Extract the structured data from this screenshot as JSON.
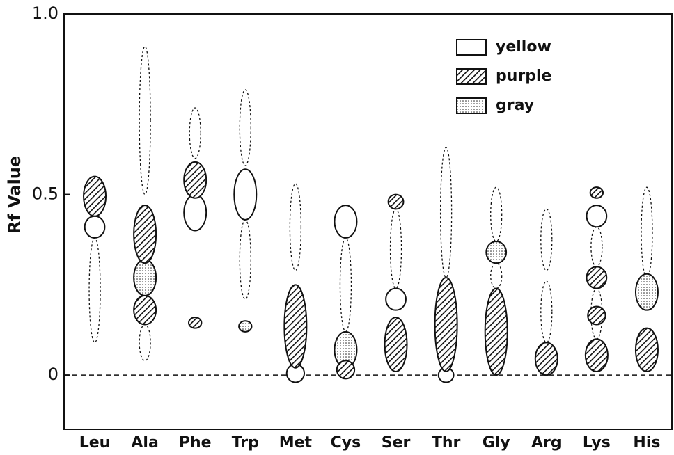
{
  "chart_data": {
    "type": "chromatogram",
    "y_label": "Rf Value",
    "categories": [
      "Leu",
      "Ala",
      "Phe",
      "Trp",
      "Met",
      "Cys",
      "Ser",
      "Thr",
      "Gly",
      "Arg",
      "Lys",
      "His"
    ],
    "ylim": [
      -0.15,
      1.0
    ],
    "yticks": [
      {
        "value": 1,
        "label": "1.0"
      },
      0.5,
      0
    ],
    "legend": [
      {
        "name": "yellow",
        "kind": "yellow"
      },
      {
        "name": "purple",
        "kind": "purple"
      },
      {
        "name": "gray",
        "kind": "gray"
      }
    ],
    "spots": [
      [
        {
          "kind": "yellow",
          "dashed": true,
          "range": [
            0.09,
            0.38
          ]
        },
        {
          "kind": "yellow",
          "range": [
            0.38,
            0.44
          ]
        },
        {
          "kind": "purple",
          "range": [
            0.44,
            0.55
          ]
        }
      ],
      [
        {
          "kind": "yellow",
          "dashed": true,
          "range": [
            0.04,
            0.14
          ]
        },
        {
          "kind": "yellow",
          "dashed": true,
          "range": [
            0.5,
            0.91
          ]
        },
        {
          "kind": "purple",
          "range": [
            0.14,
            0.22
          ]
        },
        {
          "kind": "gray",
          "range": [
            0.22,
            0.32
          ]
        },
        {
          "kind": "purple",
          "range": [
            0.31,
            0.47
          ]
        }
      ],
      [
        {
          "kind": "yellow",
          "dashed": true,
          "range": [
            0.6,
            0.74
          ]
        },
        {
          "kind": "yellow",
          "range": [
            0.4,
            0.5
          ]
        },
        {
          "kind": "purple",
          "range": [
            0.49,
            0.59
          ]
        },
        {
          "kind": "purple",
          "range": [
            0.13,
            0.16
          ]
        }
      ],
      [
        {
          "kind": "yellow",
          "dashed": true,
          "range": [
            0.58,
            0.79
          ]
        },
        {
          "kind": "yellow",
          "dashed": true,
          "range": [
            0.21,
            0.43
          ]
        },
        {
          "kind": "yellow",
          "range": [
            0.43,
            0.57
          ]
        },
        {
          "kind": "gray",
          "range": [
            0.12,
            0.15
          ]
        }
      ],
      [
        {
          "kind": "yellow",
          "dashed": true,
          "range": [
            0.29,
            0.53
          ]
        },
        {
          "kind": "yellow",
          "range": [
            -0.02,
            0.03
          ]
        },
        {
          "kind": "purple",
          "range": [
            0.02,
            0.25
          ]
        }
      ],
      [
        {
          "kind": "yellow",
          "dashed": true,
          "range": [
            0.12,
            0.38
          ]
        },
        {
          "kind": "yellow",
          "range": [
            0.38,
            0.47
          ]
        },
        {
          "kind": "gray",
          "range": [
            0.02,
            0.12
          ]
        },
        {
          "kind": "purple",
          "range": [
            -0.01,
            0.04
          ]
        }
      ],
      [
        {
          "kind": "yellow",
          "dashed": true,
          "range": [
            0.24,
            0.46
          ]
        },
        {
          "kind": "purple",
          "range": [
            0.46,
            0.5
          ]
        },
        {
          "kind": "yellow",
          "range": [
            0.18,
            0.24
          ]
        },
        {
          "kind": "purple",
          "range": [
            0.01,
            0.16
          ]
        }
      ],
      [
        {
          "kind": "yellow",
          "dashed": true,
          "range": [
            0.27,
            0.63
          ]
        },
        {
          "kind": "yellow",
          "range": [
            -0.02,
            0.02
          ]
        },
        {
          "kind": "purple",
          "range": [
            0.01,
            0.27
          ]
        }
      ],
      [
        {
          "kind": "yellow",
          "dashed": true,
          "range": [
            0.37,
            0.52
          ]
        },
        {
          "kind": "yellow",
          "dashed": true,
          "range": [
            0.24,
            0.31
          ]
        },
        {
          "kind": "gray",
          "range": [
            0.31,
            0.37
          ]
        },
        {
          "kind": "purple",
          "range": [
            0.0,
            0.24
          ]
        }
      ],
      [
        {
          "kind": "yellow",
          "dashed": true,
          "range": [
            0.29,
            0.46
          ]
        },
        {
          "kind": "yellow",
          "dashed": true,
          "range": [
            0.09,
            0.26
          ]
        },
        {
          "kind": "purple",
          "range": [
            0.0,
            0.09
          ]
        }
      ],
      [
        {
          "kind": "yellow",
          "dashed": true,
          "range": [
            0.3,
            0.41
          ]
        },
        {
          "kind": "yellow",
          "dashed": true,
          "range": [
            0.1,
            0.24
          ]
        },
        {
          "kind": "purple",
          "range": [
            0.49,
            0.52
          ]
        },
        {
          "kind": "yellow",
          "range": [
            0.41,
            0.47
          ]
        },
        {
          "kind": "purple",
          "range": [
            0.24,
            0.3
          ]
        },
        {
          "kind": "purple",
          "range": [
            0.14,
            0.19
          ]
        },
        {
          "kind": "purple",
          "range": [
            0.01,
            0.1
          ]
        }
      ],
      [
        {
          "kind": "yellow",
          "dashed": true,
          "range": [
            0.27,
            0.52
          ]
        },
        {
          "kind": "gray",
          "range": [
            0.18,
            0.28
          ]
        },
        {
          "kind": "purple",
          "range": [
            0.01,
            0.13
          ]
        }
      ]
    ]
  }
}
